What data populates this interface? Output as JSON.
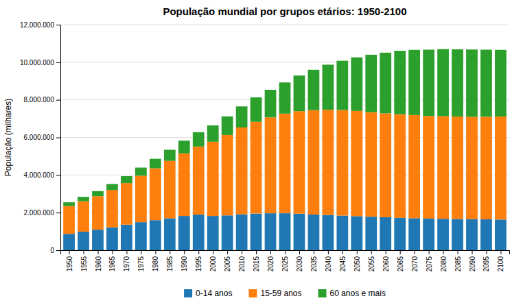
{
  "chart_data": {
    "type": "bar",
    "stacked": true,
    "title": "População mundial por grupos etários: 1950-2100",
    "ylabel": "População (milhares)",
    "x": [
      1950,
      1955,
      1960,
      1965,
      1970,
      1975,
      1980,
      1985,
      1990,
      1995,
      2000,
      2005,
      2010,
      2015,
      2020,
      2025,
      2030,
      2035,
      2040,
      2045,
      2050,
      2055,
      2060,
      2065,
      2070,
      2075,
      2080,
      2085,
      2090,
      2095,
      2100
    ],
    "series": [
      {
        "name": "0-14 anos",
        "values": [
          868000,
          983000,
          1090000,
          1216000,
          1358000,
          1490000,
          1597000,
          1693000,
          1820000,
          1893000,
          1820000,
          1850000,
          1910000,
          1950000,
          1965000,
          1965000,
          1945000,
          1900000,
          1870000,
          1840000,
          1810000,
          1780000,
          1750000,
          1720000,
          1700000,
          1680000,
          1670000,
          1660000,
          1650000,
          1640000,
          1630000
        ]
      },
      {
        "name": "15-59 anos",
        "values": [
          1480000,
          1620000,
          1780000,
          1990000,
          2210000,
          2470000,
          2760000,
          3060000,
          3330000,
          3620000,
          3950000,
          4280000,
          4620000,
          4880000,
          5100000,
          5300000,
          5450000,
          5550000,
          5600000,
          5620000,
          5600000,
          5560000,
          5530000,
          5510000,
          5490000,
          5460000,
          5460000,
          5450000,
          5450000,
          5460000,
          5480000
        ]
      },
      {
        "name": "60 anos e mais",
        "values": [
          200000,
          235000,
          272000,
          315000,
          370000,
          434000,
          507000,
          590000,
          680000,
          765000,
          870000,
          990000,
          1120000,
          1300000,
          1470000,
          1660000,
          1900000,
          2150000,
          2400000,
          2620000,
          2850000,
          3060000,
          3230000,
          3380000,
          3470000,
          3530000,
          3570000,
          3580000,
          3580000,
          3570000,
          3550000
        ]
      }
    ],
    "xlim": [
      1947,
      2103
    ],
    "xticks": [
      1950,
      1955,
      1960,
      1965,
      1970,
      1975,
      1980,
      1985,
      1990,
      1995,
      2000,
      2005,
      2010,
      2015,
      2020,
      2025,
      2030,
      2035,
      2040,
      2045,
      2050,
      2055,
      2060,
      2065,
      2070,
      2075,
      2080,
      2085,
      2090,
      2095,
      2100
    ],
    "ylim": [
      0,
      12000000
    ],
    "yticks": [
      0,
      {
        "value": 2000000,
        "label": "2.000.000"
      },
      {
        "value": 4000000,
        "label": "4.000.000"
      },
      {
        "value": 6000000,
        "label": "6.000.000"
      },
      {
        "value": 8000000,
        "label": "8.000.000"
      },
      {
        "value": 10000000,
        "label": "10.000.000"
      },
      {
        "value": 12000000,
        "label": "12.000.000"
      }
    ],
    "grid": true,
    "legend": "bottom"
  }
}
